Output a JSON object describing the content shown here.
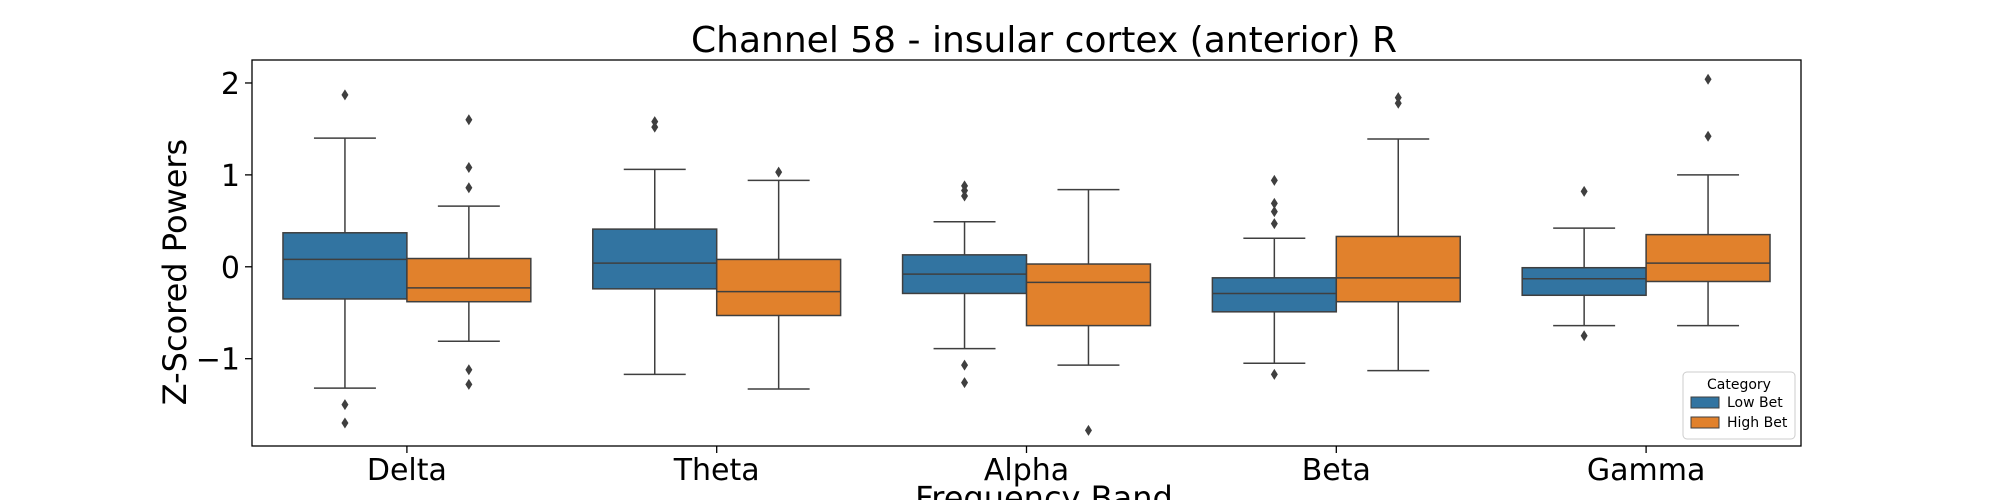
{
  "chart_data": {
    "type": "boxplot",
    "title": "Channel 58 - insular cortex (anterior) R",
    "xlabel": "Frequency Band",
    "ylabel": "Z-Scored Powers",
    "categories": [
      "Delta",
      "Theta",
      "Alpha",
      "Beta",
      "Gamma"
    ],
    "ylim": [
      -1.95,
      2.25
    ],
    "yticks": [
      2,
      1,
      0,
      -1
    ],
    "ytick_labels": [
      "2",
      "1",
      "0",
      "−1"
    ],
    "grid": false,
    "legend": {
      "title": "Category",
      "position": "lower-right"
    },
    "series": [
      {
        "name": "Low Bet",
        "color": "#3274a1",
        "boxes": [
          {
            "whisker_low": -1.32,
            "q1": -0.35,
            "median": 0.08,
            "q3": 0.37,
            "whisker_high": 1.4,
            "outliers": [
              1.87,
              -1.5,
              -1.7
            ]
          },
          {
            "whisker_low": -1.17,
            "q1": -0.24,
            "median": 0.04,
            "q3": 0.41,
            "whisker_high": 1.06,
            "outliers": [
              1.58,
              1.52
            ]
          },
          {
            "whisker_low": -0.89,
            "q1": -0.29,
            "median": -0.08,
            "q3": 0.13,
            "whisker_high": 0.49,
            "outliers": [
              0.88,
              0.83,
              0.77,
              -1.07,
              -1.26
            ]
          },
          {
            "whisker_low": -1.05,
            "q1": -0.49,
            "median": -0.29,
            "q3": -0.12,
            "whisker_high": 0.31,
            "outliers": [
              0.94,
              0.69,
              0.6,
              0.47,
              -1.17
            ]
          },
          {
            "whisker_low": -0.64,
            "q1": -0.31,
            "median": -0.13,
            "q3": -0.01,
            "whisker_high": 0.42,
            "outliers": [
              0.82,
              -0.75
            ]
          }
        ]
      },
      {
        "name": "High Bet",
        "color": "#e1812c",
        "boxes": [
          {
            "whisker_low": -0.81,
            "q1": -0.38,
            "median": -0.23,
            "q3": 0.09,
            "whisker_high": 0.66,
            "outliers": [
              1.6,
              1.08,
              0.86,
              -1.12,
              -1.28
            ]
          },
          {
            "whisker_low": -1.33,
            "q1": -0.53,
            "median": -0.27,
            "q3": 0.08,
            "whisker_high": 0.94,
            "outliers": [
              1.03
            ]
          },
          {
            "whisker_low": -1.07,
            "q1": -0.64,
            "median": -0.17,
            "q3": 0.03,
            "whisker_high": 0.84,
            "outliers": [
              -1.78
            ]
          },
          {
            "whisker_low": -1.13,
            "q1": -0.38,
            "median": -0.12,
            "q3": 0.33,
            "whisker_high": 1.39,
            "outliers": [
              1.84,
              1.78
            ]
          },
          {
            "whisker_low": -0.64,
            "q1": -0.16,
            "median": 0.04,
            "q3": 0.35,
            "whisker_high": 1.0,
            "outliers": [
              2.04,
              1.42
            ]
          }
        ]
      }
    ]
  }
}
